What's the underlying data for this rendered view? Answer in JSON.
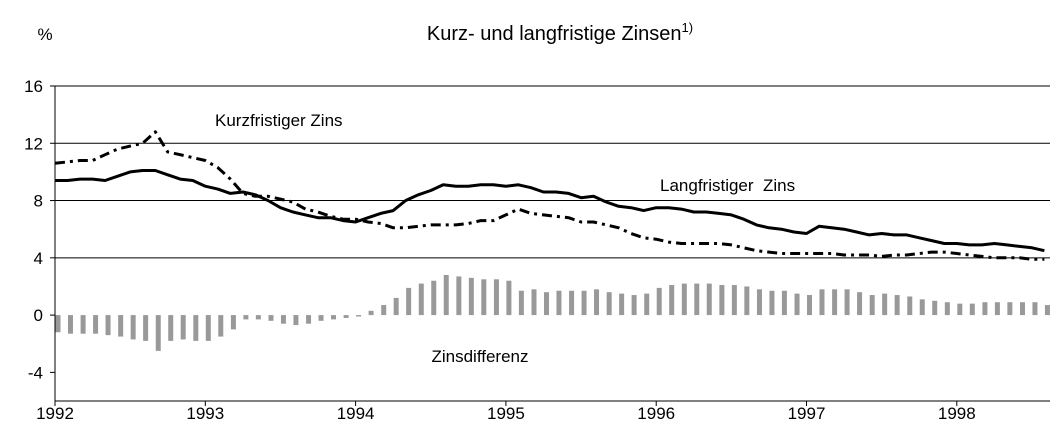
{
  "chart_data": {
    "type": "line",
    "title": "Kurz- und langfristige Zinsen",
    "title_note": "1)",
    "y_label": "%",
    "xlim": [
      1992,
      1998.62
    ],
    "xticks": [
      1992,
      1993,
      1994,
      1995,
      1996,
      1997,
      1998
    ],
    "ylim": [
      -6,
      16
    ],
    "yticks": [
      -4,
      0,
      4,
      8,
      12,
      16
    ],
    "grid": true,
    "x": [
      1992.0,
      1992.083,
      1992.167,
      1992.25,
      1992.333,
      1992.417,
      1992.5,
      1992.583,
      1992.667,
      1992.75,
      1992.833,
      1992.917,
      1993.0,
      1993.083,
      1993.167,
      1993.25,
      1993.333,
      1993.417,
      1993.5,
      1993.583,
      1993.667,
      1993.75,
      1993.833,
      1993.917,
      1994.0,
      1994.083,
      1994.167,
      1994.25,
      1994.333,
      1994.417,
      1994.5,
      1994.583,
      1994.667,
      1994.75,
      1994.833,
      1994.917,
      1995.0,
      1995.083,
      1995.167,
      1995.25,
      1995.333,
      1995.417,
      1995.5,
      1995.583,
      1995.667,
      1995.75,
      1995.833,
      1995.917,
      1996.0,
      1996.083,
      1996.167,
      1996.25,
      1996.333,
      1996.417,
      1996.5,
      1996.583,
      1996.667,
      1996.75,
      1996.833,
      1996.917,
      1997.0,
      1997.083,
      1997.167,
      1997.25,
      1997.333,
      1997.417,
      1997.5,
      1997.583,
      1997.667,
      1997.75,
      1997.833,
      1997.917,
      1998.0,
      1998.083,
      1998.167,
      1998.25,
      1998.333,
      1998.417,
      1998.5,
      1998.583
    ],
    "series": [
      {
        "name": "Zinsdifferenz",
        "type": "bar",
        "color": "#999999",
        "values": [
          -1.2,
          -1.3,
          -1.3,
          -1.3,
          -1.4,
          -1.5,
          -1.7,
          -1.8,
          -2.5,
          -1.8,
          -1.7,
          -1.8,
          -1.8,
          -1.5,
          -1.0,
          -0.3,
          -0.3,
          -0.4,
          -0.6,
          -0.7,
          -0.6,
          -0.4,
          -0.3,
          -0.2,
          -0.1,
          0.3,
          0.7,
          1.2,
          1.9,
          2.2,
          2.4,
          2.8,
          2.7,
          2.6,
          2.5,
          2.5,
          2.4,
          1.7,
          1.8,
          1.6,
          1.7,
          1.7,
          1.7,
          1.8,
          1.6,
          1.5,
          1.4,
          1.5,
          1.9,
          2.1,
          2.2,
          2.2,
          2.2,
          2.1,
          2.1,
          2.0,
          1.8,
          1.7,
          1.7,
          1.5,
          1.4,
          1.8,
          1.8,
          1.8,
          1.6,
          1.4,
          1.5,
          1.4,
          1.3,
          1.1,
          1.0,
          0.9,
          0.8,
          0.8,
          0.9,
          0.9,
          0.9,
          0.9,
          0.9,
          0.7
        ]
      },
      {
        "name": "Kurzfristiger Zins",
        "type": "line",
        "style": "dashed",
        "color": "#000000",
        "values": [
          10.6,
          10.7,
          10.8,
          10.8,
          11.2,
          11.6,
          11.8,
          12.0,
          12.8,
          11.4,
          11.2,
          11.0,
          10.8,
          10.3,
          9.5,
          8.5,
          8.3,
          8.3,
          8.1,
          7.9,
          7.4,
          7.2,
          6.9,
          6.7,
          6.7,
          6.5,
          6.4,
          6.1,
          6.1,
          6.2,
          6.3,
          6.3,
          6.3,
          6.4,
          6.6,
          6.6,
          7.0,
          7.4,
          7.1,
          7.0,
          6.9,
          6.8,
          6.5,
          6.5,
          6.3,
          6.1,
          5.7,
          5.4,
          5.3,
          5.1,
          5.0,
          5.0,
          5.0,
          5.0,
          4.9,
          4.7,
          4.5,
          4.4,
          4.3,
          4.3,
          4.3,
          4.3,
          4.3,
          4.2,
          4.2,
          4.2,
          4.1,
          4.2,
          4.2,
          4.3,
          4.4,
          4.4,
          4.3,
          4.2,
          4.1,
          4.0,
          4.0,
          4.0,
          3.9,
          3.9
        ]
      },
      {
        "name": "Langfristiger  Zins",
        "type": "line",
        "style": "solid",
        "color": "#000000",
        "values": [
          9.4,
          9.4,
          9.5,
          9.5,
          9.4,
          9.7,
          10.0,
          10.1,
          10.1,
          9.8,
          9.5,
          9.4,
          9.0,
          8.8,
          8.5,
          8.6,
          8.4,
          8.0,
          7.5,
          7.2,
          7.0,
          6.8,
          6.8,
          6.6,
          6.5,
          6.8,
          7.1,
          7.3,
          8.0,
          8.4,
          8.7,
          9.1,
          9.0,
          9.0,
          9.1,
          9.1,
          9.0,
          9.1,
          8.9,
          8.6,
          8.6,
          8.5,
          8.2,
          8.3,
          7.9,
          7.6,
          7.5,
          7.3,
          7.5,
          7.5,
          7.4,
          7.2,
          7.2,
          7.1,
          7.0,
          6.7,
          6.3,
          6.1,
          6.0,
          5.8,
          5.7,
          6.2,
          6.1,
          6.0,
          5.8,
          5.6,
          5.7,
          5.6,
          5.6,
          5.4,
          5.2,
          5.0,
          5.0,
          4.9,
          4.9,
          5.0,
          4.9,
          4.8,
          4.7,
          4.5
        ]
      }
    ]
  }
}
